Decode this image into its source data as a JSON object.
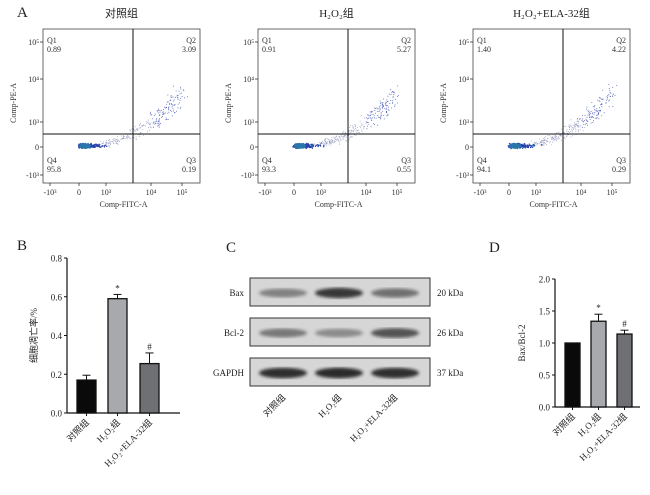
{
  "panels": {
    "A": "A",
    "B": "B",
    "C": "C",
    "D": "D"
  },
  "flow": {
    "xlabel": "Comp-FITC-A",
    "ylabel": "Comp-PE-A",
    "xticks": [
      "-10³",
      "0",
      "10³",
      "10⁴",
      "10⁵"
    ],
    "yticks": [
      "10⁵",
      "10⁴",
      "10³",
      "0",
      "-10³"
    ],
    "plots": [
      {
        "title": "对照组",
        "Q1": "Q1",
        "Q1v": "0.89",
        "Q2": "Q2",
        "Q2v": "3.09",
        "Q3": "Q3",
        "Q3v": "0.19",
        "Q4": "Q4",
        "Q4v": "95.8"
      },
      {
        "title": "H₂O₂组",
        "Q1": "Q1",
        "Q1v": "0.91",
        "Q2": "Q2",
        "Q2v": "5.27",
        "Q3": "Q3",
        "Q3v": "0.55",
        "Q4": "Q4",
        "Q4v": "93.3"
      },
      {
        "title": "H₂O₂+ELA-32组",
        "Q1": "Q1",
        "Q1v": "1.40",
        "Q2": "Q2",
        "Q2v": "4.22",
        "Q3": "Q3",
        "Q3v": "0.29",
        "Q4": "Q4",
        "Q4v": "94.1"
      }
    ]
  },
  "blot": {
    "rows": [
      {
        "protein": "Bax",
        "size": "20 kDa"
      },
      {
        "protein": "Bcl-2",
        "size": "26 kDa"
      },
      {
        "protein": "GAPDH",
        "size": "37 kDa"
      }
    ],
    "lanes": [
      "对照组",
      "H₂O₂组",
      "H₂O₂+ELA-32组"
    ]
  },
  "chart_data": [
    {
      "type": "bar",
      "panel": "B",
      "categories": [
        "对照组",
        "H₂O₂组",
        "H₂O₂+ELA-32组"
      ],
      "values": [
        0.17,
        0.59,
        0.255
      ],
      "errors": [
        0.025,
        0.022,
        0.055
      ],
      "annotations": [
        "",
        "*",
        "#"
      ],
      "colors": [
        "#0a0a0a",
        "#a7a9ad",
        "#6f7073"
      ],
      "ylabel": "细胞凋亡率/%",
      "ylim": [
        0,
        0.8
      ],
      "yticks": [
        "0.0",
        "0.2",
        "0.4",
        "0.6",
        "0.8"
      ],
      "ytick_values": [
        0,
        0.2,
        0.4,
        0.6,
        0.8
      ]
    },
    {
      "type": "bar",
      "panel": "D",
      "categories": [
        "对照组",
        "H₂O₂组",
        "H₂O₂+ELA-32组"
      ],
      "values": [
        1.0,
        1.34,
        1.14
      ],
      "errors": [
        0,
        0.11,
        0.06
      ],
      "annotations": [
        "",
        "*",
        "#"
      ],
      "colors": [
        "#0a0a0a",
        "#a7a9ad",
        "#6f7073"
      ],
      "ylabel": "Bax/Bcl-2",
      "ylim": [
        0,
        2.0
      ],
      "yticks": [
        "0.0",
        "0.5",
        "1.0",
        "1.5",
        "2.0"
      ],
      "ytick_values": [
        0,
        0.5,
        1.0,
        1.5,
        2.0
      ]
    }
  ]
}
